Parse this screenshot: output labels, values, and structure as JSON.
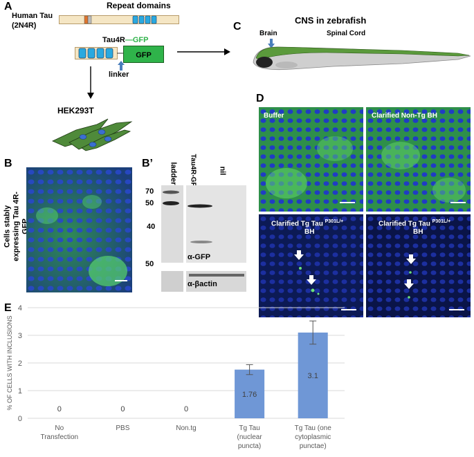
{
  "panels": {
    "A": "A",
    "B": "B",
    "B_prime": "B’",
    "C": "C",
    "D": "D",
    "E": "E"
  },
  "panelA": {
    "protein_name_line1": "Human Tau",
    "protein_name_line2": "(2N4R)",
    "repeat_domains": "Repeat domains",
    "construct_label_main": "Tau4R",
    "construct_label_tag": "—GFP",
    "gfp_box": "GFP",
    "linker": "linker",
    "cell_line": "HEK293T"
  },
  "panelC": {
    "title": "CNS in zebrafish",
    "brain": "Brain",
    "spinal_cord": "Spinal Cord"
  },
  "panelB": {
    "ylabel_line1": "Cells stably",
    "ylabel_line2": "expressing Tau 4R-",
    "ylabel_line3": "GFP"
  },
  "panelBprime": {
    "lane_ladder": "ladder",
    "lane_tau": "Tau4R-GFP",
    "lane_nil": "nil",
    "mw_70": "70",
    "mw_50": "50",
    "mw_40": "40",
    "mw_50b": "50",
    "blot_gfp": "α-GFP",
    "blot_actin": "α-βactin"
  },
  "panelD": {
    "buffer": "Buffer",
    "nontg": "Clarified Non-Tg BH",
    "tg1_main": "Clarified Tg Tau",
    "tg1_sup": "P301L/+",
    "tg1_line2": "BH",
    "tg2_main": "Clarified  Tg Tau",
    "tg2_sup": "P301L/+",
    "tg2_line2": "BH"
  },
  "colors": {
    "bar": "#6f97d6",
    "gfp_green": "#2fb34a",
    "repeat_blue": "#29a9e0",
    "fish_green": "#5b9a3c",
    "cell_green": "#4f8a3a"
  },
  "chart_data": {
    "type": "bar",
    "ylabel": "% OF CELLS WITH INCLUSIONS",
    "ylim": [
      0,
      4
    ],
    "yticks": [
      "0",
      "1",
      "2",
      "3",
      "4"
    ],
    "grid": true,
    "categories": [
      [
        "No",
        "Transfection"
      ],
      [
        "PBS"
      ],
      [
        "Non.tg"
      ],
      [
        "Tg Tau",
        "(nuclear",
        "puncta)"
      ],
      [
        "Tg Tau (one",
        "cytoplasmic",
        "punctae)"
      ]
    ],
    "values": [
      0,
      0,
      0,
      1.76,
      3.1
    ],
    "data_labels": [
      "0",
      "0",
      "0",
      "1.76",
      "3.1"
    ],
    "error": [
      0,
      0,
      0,
      0.18,
      0.42
    ]
  }
}
